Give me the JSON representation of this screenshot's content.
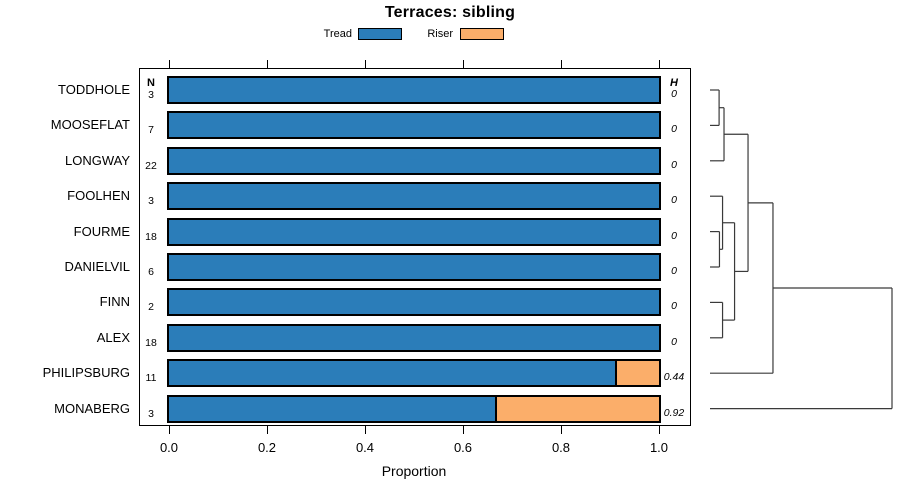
{
  "title": "Terraces: sibling",
  "legend": {
    "items": [
      {
        "label": "Tread",
        "color": "#2B7DB9"
      },
      {
        "label": "Riser",
        "color": "#FBAE6A"
      }
    ]
  },
  "columns": {
    "n_header": "N",
    "h_header": "H"
  },
  "axis": {
    "label": "Proportion",
    "ticks": [
      {
        "label": "0.0",
        "value": 0.0
      },
      {
        "label": "0.2",
        "value": 0.2
      },
      {
        "label": "0.4",
        "value": 0.4
      },
      {
        "label": "0.6",
        "value": 0.6
      },
      {
        "label": "0.8",
        "value": 0.8
      },
      {
        "label": "1.0",
        "value": 1.0
      }
    ]
  },
  "rows": [
    {
      "label": "TODDHOLE",
      "n": "3",
      "tread": 1.0,
      "riser": 0.0,
      "h": "0"
    },
    {
      "label": "MOOSEFLAT",
      "n": "7",
      "tread": 1.0,
      "riser": 0.0,
      "h": "0"
    },
    {
      "label": "LONGWAY",
      "n": "22",
      "tread": 1.0,
      "riser": 0.0,
      "h": "0"
    },
    {
      "label": "FOOLHEN",
      "n": "3",
      "tread": 1.0,
      "riser": 0.0,
      "h": "0"
    },
    {
      "label": "FOURME",
      "n": "18",
      "tread": 1.0,
      "riser": 0.0,
      "h": "0"
    },
    {
      "label": "DANIELVIL",
      "n": "6",
      "tread": 1.0,
      "riser": 0.0,
      "h": "0"
    },
    {
      "label": "FINN",
      "n": "2",
      "tread": 1.0,
      "riser": 0.0,
      "h": "0"
    },
    {
      "label": "ALEX",
      "n": "18",
      "tread": 1.0,
      "riser": 0.0,
      "h": "0"
    },
    {
      "label": "PHILIPSBURG",
      "n": "11",
      "tread": 0.91,
      "riser": 0.09,
      "h": "0.44"
    },
    {
      "label": "MONABERG",
      "n": "3",
      "tread": 0.665,
      "riser": 0.335,
      "h": "0.92"
    }
  ],
  "chart_data": {
    "type": "bar",
    "orientation": "horizontal",
    "stacked": true,
    "title": "Terraces: sibling",
    "xlabel": "Proportion",
    "xlim": [
      0.0,
      1.0
    ],
    "xticks": [
      0.0,
      0.2,
      0.4,
      0.6,
      0.8,
      1.0
    ],
    "categories": [
      "TODDHOLE",
      "MOOSEFLAT",
      "LONGWAY",
      "FOOLHEN",
      "FOURME",
      "DANIELVIL",
      "FINN",
      "ALEX",
      "PHILIPSBURG",
      "MONABERG"
    ],
    "n_counts": [
      3,
      7,
      22,
      3,
      18,
      6,
      2,
      18,
      11,
      3
    ],
    "h_values": [
      0,
      0,
      0,
      0,
      0,
      0,
      0,
      0,
      0.44,
      0.92
    ],
    "series": [
      {
        "name": "Tread",
        "color": "#2B7DB9",
        "values": [
          1.0,
          1.0,
          1.0,
          1.0,
          1.0,
          1.0,
          1.0,
          1.0,
          0.91,
          0.665
        ]
      },
      {
        "name": "Riser",
        "color": "#FBAE6A",
        "values": [
          0.0,
          0.0,
          0.0,
          0.0,
          0.0,
          0.0,
          0.0,
          0.0,
          0.09,
          0.335
        ]
      }
    ],
    "legend_position": "top",
    "grid": false,
    "dendrogram": {
      "side": "right",
      "leaf_order": [
        "TODDHOLE",
        "MOOSEFLAT",
        "LONGWAY",
        "FOOLHEN",
        "FOURME",
        "DANIELVIL",
        "FINN",
        "ALEX",
        "PHILIPSBURG",
        "MONABERG"
      ],
      "merges": [
        {
          "id": "m1",
          "children": [
            "TODDHOLE",
            "MOOSEFLAT"
          ],
          "h": 0.05
        },
        {
          "id": "m2",
          "children": [
            "m1",
            "LONGWAY"
          ],
          "h": 0.077
        },
        {
          "id": "m3",
          "children": [
            "FOURME",
            "DANIELVIL"
          ],
          "h": 0.052
        },
        {
          "id": "m4",
          "children": [
            "FOOLHEN",
            "m3"
          ],
          "h": 0.069
        },
        {
          "id": "m5",
          "children": [
            "FINN",
            "ALEX"
          ],
          "h": 0.069
        },
        {
          "id": "m6",
          "children": [
            "m4",
            "m5"
          ],
          "h": 0.135
        },
        {
          "id": "m7",
          "children": [
            "m2",
            "m6"
          ],
          "h": 0.209
        },
        {
          "id": "m8",
          "children": [
            "m7",
            "PHILIPSBURG"
          ],
          "h": 0.346
        },
        {
          "id": "m9",
          "children": [
            "m8",
            "MONABERG"
          ],
          "h": 1.0
        }
      ]
    }
  }
}
